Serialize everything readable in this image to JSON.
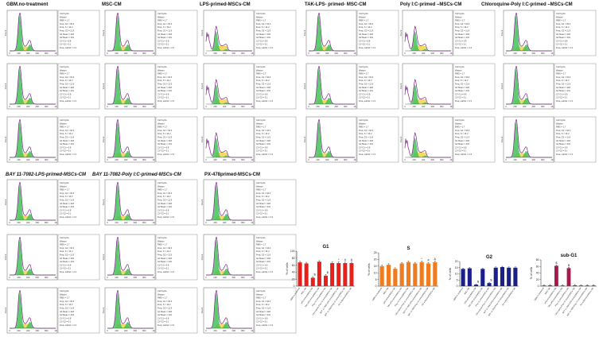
{
  "headers": {
    "gbm_no_treatment": "GBM.no-treatment",
    "msc_cm": "MSC-CM",
    "lps_primed_mscs_cm": "LPS-primed-MSCs-CM",
    "tak_lps_primed_msc_cm": "TAK-LPS- primed- MSC-CM",
    "poly_ic_primed_mscs_cm": "Poly I:C-primed –MSCs-CM",
    "chloroquine_poly_ic_primed_mscs_cm": "Chloroquine-Poly I:C-primed –MSCs-CM",
    "bay_lps_primed_mscs_cm": "BAY 11-7082-LPS-primed-MSCs-CM",
    "bay_poly_ic_primed_mscs_cm": "BAY 11-7082-Poly I:C-primed-MSCs-CM",
    "px478_primed_mscs_cm": "PX-478primed-MSCs-CM"
  },
  "histogram_panel": {
    "ylabel": "Count",
    "x_ticks": [
      "0",
      "200",
      "400",
      "600",
      "800",
      "1K"
    ],
    "stats_lines": [
      "Cell Cycle",
      "Watson",
      "RMS = 1.7",
      "Freq. G1 = 64.3",
      "Freq. S = 14.2",
      "Freq. G2 = 11.9",
      "G1 Mean = 218",
      "G2 Mean = 431",
      "CV G1 = 6.8",
      "CV G2 = 5.1",
      "Freq. subG1 = 2.3"
    ]
  },
  "colors": {
    "g1_bar": "#e8201c",
    "s_bar": "#f07c22",
    "g2_bar": "#1b1f8a",
    "subg1_bar": "#a5194c",
    "g1_fill": "#45c25a",
    "s_fill": "#f1d34a",
    "g2_fill": "#45c25a",
    "model_line": "#c23ad6",
    "data_line": "#222222"
  },
  "chart_data": [
    {
      "type": "bar",
      "title": "G1",
      "ylabel": "% of cells",
      "ylim": [
        0,
        100
      ],
      "y_ticks": [
        "0",
        "20",
        "40",
        "60",
        "80",
        "100"
      ],
      "categories": [
        "GBM-no treatment",
        "MSC-CM",
        "LPS-primed-MSCs-CM",
        "TAK-LPS-primed-MSCs-CM",
        "Poly I:C-primed-MSCs-CM",
        "Chloroquine-Poly I:C-primed-MSCs-CM",
        "BAY 11-7082-LPS-primed-MSCs-CM",
        "BAY 11-7082-Poly I:C-primed-MSCs-CM",
        "PX-478primed-MSCs-CM"
      ],
      "values": [
        68,
        65,
        24,
        70,
        30,
        66,
        66,
        66,
        66
      ],
      "annotations": [
        "",
        "",
        "$",
        "",
        "$",
        "",
        "*",
        "#",
        "&"
      ]
    },
    {
      "type": "bar",
      "title": "S",
      "ylabel": "% of cells",
      "ylim": [
        0,
        25
      ],
      "y_ticks": [
        "0",
        "5",
        "10",
        "15",
        "20",
        "25"
      ],
      "categories": [
        "GBM-no treatment",
        "MSC-CM",
        "LPS-primed-MSCs-CM",
        "TAK-LPS-primed-MSCs-CM",
        "Poly I:C-primed-MSCs-CM",
        "Chloroquine-Poly I:C-primed-MSCs-CM",
        "BAY 11-7082-LPS-primed-MSCs-CM",
        "BAY 11-7082-Poly I:C-primed-MSCs-CM",
        "PX-478primed-MSCs-CM"
      ],
      "values": [
        15,
        16,
        13,
        17,
        18,
        17,
        18,
        17,
        18
      ],
      "annotations": [
        "",
        "",
        "",
        "",
        "",
        "",
        "*",
        "#",
        "&"
      ]
    },
    {
      "type": "bar",
      "title": "G2",
      "ylabel": "% of cells",
      "ylim": [
        0,
        20
      ],
      "y_ticks": [
        "0",
        "5",
        "10",
        "15",
        "20"
      ],
      "categories": [
        "GBM-no treatment",
        "MSC-CM",
        "LPS-primed-MSCs-CM",
        "TAK-LPS-primed-MSCs-CM",
        "Poly I:C-primed-MSCs-CM",
        "Chloroquine-Poly I:C-primed-MSCs-CM",
        "BAY 11-7082-LPS-primed-MSCs-CM",
        "BAY 11-7082-Poly I:C-primed-MSCs-CM",
        "PX-478primed-MSCs-CM"
      ],
      "values": [
        14,
        14.5,
        1.2,
        14,
        2.5,
        15,
        15.5,
        15,
        15
      ],
      "annotations": [
        "",
        "",
        "$",
        "",
        "$",
        "",
        "",
        "",
        ""
      ]
    },
    {
      "type": "bar",
      "title": "sub-G1",
      "ylabel": "% of cells",
      "ylim": [
        0,
        80
      ],
      "y_ticks": [
        "0",
        "20",
        "40",
        "60",
        "80"
      ],
      "categories": [
        "GBM-no treatment",
        "MSC-CM",
        "LPS-primed-MSCs-CM",
        "TAK-LPS-primed-MSCs-CM",
        "Poly I:C-primed-MSCs-CM",
        "Chloroquine-Poly I:C-primed-MSCs-CM",
        "BAY 11-7082-LPS-primed-MSCs-CM",
        "BAY 11-7082-Poly I:C-primed-MSCs-CM",
        "PX-478primed-MSCs-CM"
      ],
      "values": [
        2,
        2.5,
        62,
        2,
        55,
        2.5,
        2,
        2,
        2
      ],
      "annotations": [
        "",
        "",
        "$",
        "",
        "$",
        "",
        "",
        "",
        ""
      ]
    }
  ]
}
